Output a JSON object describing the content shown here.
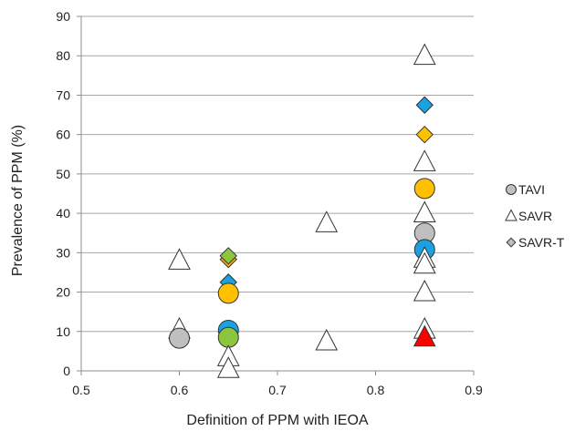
{
  "chart_data": {
    "type": "scatter",
    "title": "",
    "xlabel": "Definition of  PPM with IEOA",
    "ylabel": "Prevalence of  PPM  (%)",
    "xlim": [
      0.5,
      0.9
    ],
    "ylim": [
      0,
      90
    ],
    "x_ticks": [
      0.5,
      0.6,
      0.7,
      0.8,
      0.9
    ],
    "y_ticks": [
      0,
      10,
      20,
      30,
      40,
      50,
      60,
      70,
      80,
      90
    ],
    "x_tick_labels": [
      "0.5",
      "0.6",
      "0.7",
      "0.8",
      "0.9"
    ],
    "y_tick_labels": [
      "0",
      "10",
      "20",
      "30",
      "40",
      "50",
      "60",
      "70",
      "80",
      "90"
    ],
    "grid": "horizontal",
    "legend_position": "right",
    "legend": [
      {
        "label": "TAVI",
        "shape": "circle",
        "color": "#bfbfbf"
      },
      {
        "label": "SAVR",
        "shape": "triangle",
        "color": "#ffffff"
      },
      {
        "label": "SAVR-T",
        "shape": "diamond",
        "color": "#bfbfbf"
      }
    ],
    "points": [
      {
        "shape": "triangle",
        "color": "#ffffff",
        "x": 0.6,
        "y": 28
      },
      {
        "shape": "triangle",
        "color": "#ffffff",
        "x": 0.6,
        "y": 10.5
      },
      {
        "shape": "circle",
        "color": "#bfbfbf",
        "x": 0.6,
        "y": 8.3
      },
      {
        "shape": "diamond",
        "color": "#f5a623",
        "x": 0.65,
        "y": 28.3
      },
      {
        "shape": "diamond",
        "color": "#8cc63f",
        "x": 0.65,
        "y": 29.2
      },
      {
        "shape": "diamond",
        "color": "#1ba1e2",
        "x": 0.65,
        "y": 22.5
      },
      {
        "shape": "circle",
        "color": "#ffc000",
        "x": 0.65,
        "y": 19.7
      },
      {
        "shape": "circle",
        "color": "#1ba1e2",
        "x": 0.65,
        "y": 10.3
      },
      {
        "shape": "circle",
        "color": "#8cc63f",
        "x": 0.65,
        "y": 8.5
      },
      {
        "shape": "triangle",
        "color": "#ffffff",
        "x": 0.65,
        "y": 3.5
      },
      {
        "shape": "triangle",
        "color": "#ffffff",
        "x": 0.65,
        "y": 0.5
      },
      {
        "shape": "triangle",
        "color": "#ffffff",
        "x": 0.75,
        "y": 37.5
      },
      {
        "shape": "triangle",
        "color": "#ffffff",
        "x": 0.75,
        "y": 7.5
      },
      {
        "shape": "triangle",
        "color": "#ffffff",
        "x": 0.85,
        "y": 80
      },
      {
        "shape": "diamond",
        "color": "#1ba1e2",
        "x": 0.85,
        "y": 67.5
      },
      {
        "shape": "diamond",
        "color": "#ffc000",
        "x": 0.85,
        "y": 60
      },
      {
        "shape": "triangle",
        "color": "#ffffff",
        "x": 0.85,
        "y": 53
      },
      {
        "shape": "circle",
        "color": "#ffc000",
        "x": 0.85,
        "y": 46.3
      },
      {
        "shape": "triangle",
        "color": "#ffffff",
        "x": 0.85,
        "y": 40
      },
      {
        "shape": "circle",
        "color": "#bfbfbf",
        "x": 0.85,
        "y": 35
      },
      {
        "shape": "circle",
        "color": "#1ba1e2",
        "x": 0.85,
        "y": 30.8
      },
      {
        "shape": "triangle",
        "color": "#ffffff",
        "x": 0.85,
        "y": 28.5
      },
      {
        "shape": "triangle",
        "color": "#ffffff",
        "x": 0.85,
        "y": 27
      },
      {
        "shape": "triangle",
        "color": "#ffffff",
        "x": 0.85,
        "y": 20
      },
      {
        "shape": "triangle",
        "color": "#ffffff",
        "x": 0.85,
        "y": 10.5
      },
      {
        "shape": "triangle",
        "color": "#ff0000",
        "x": 0.85,
        "y": 8.5
      }
    ]
  }
}
